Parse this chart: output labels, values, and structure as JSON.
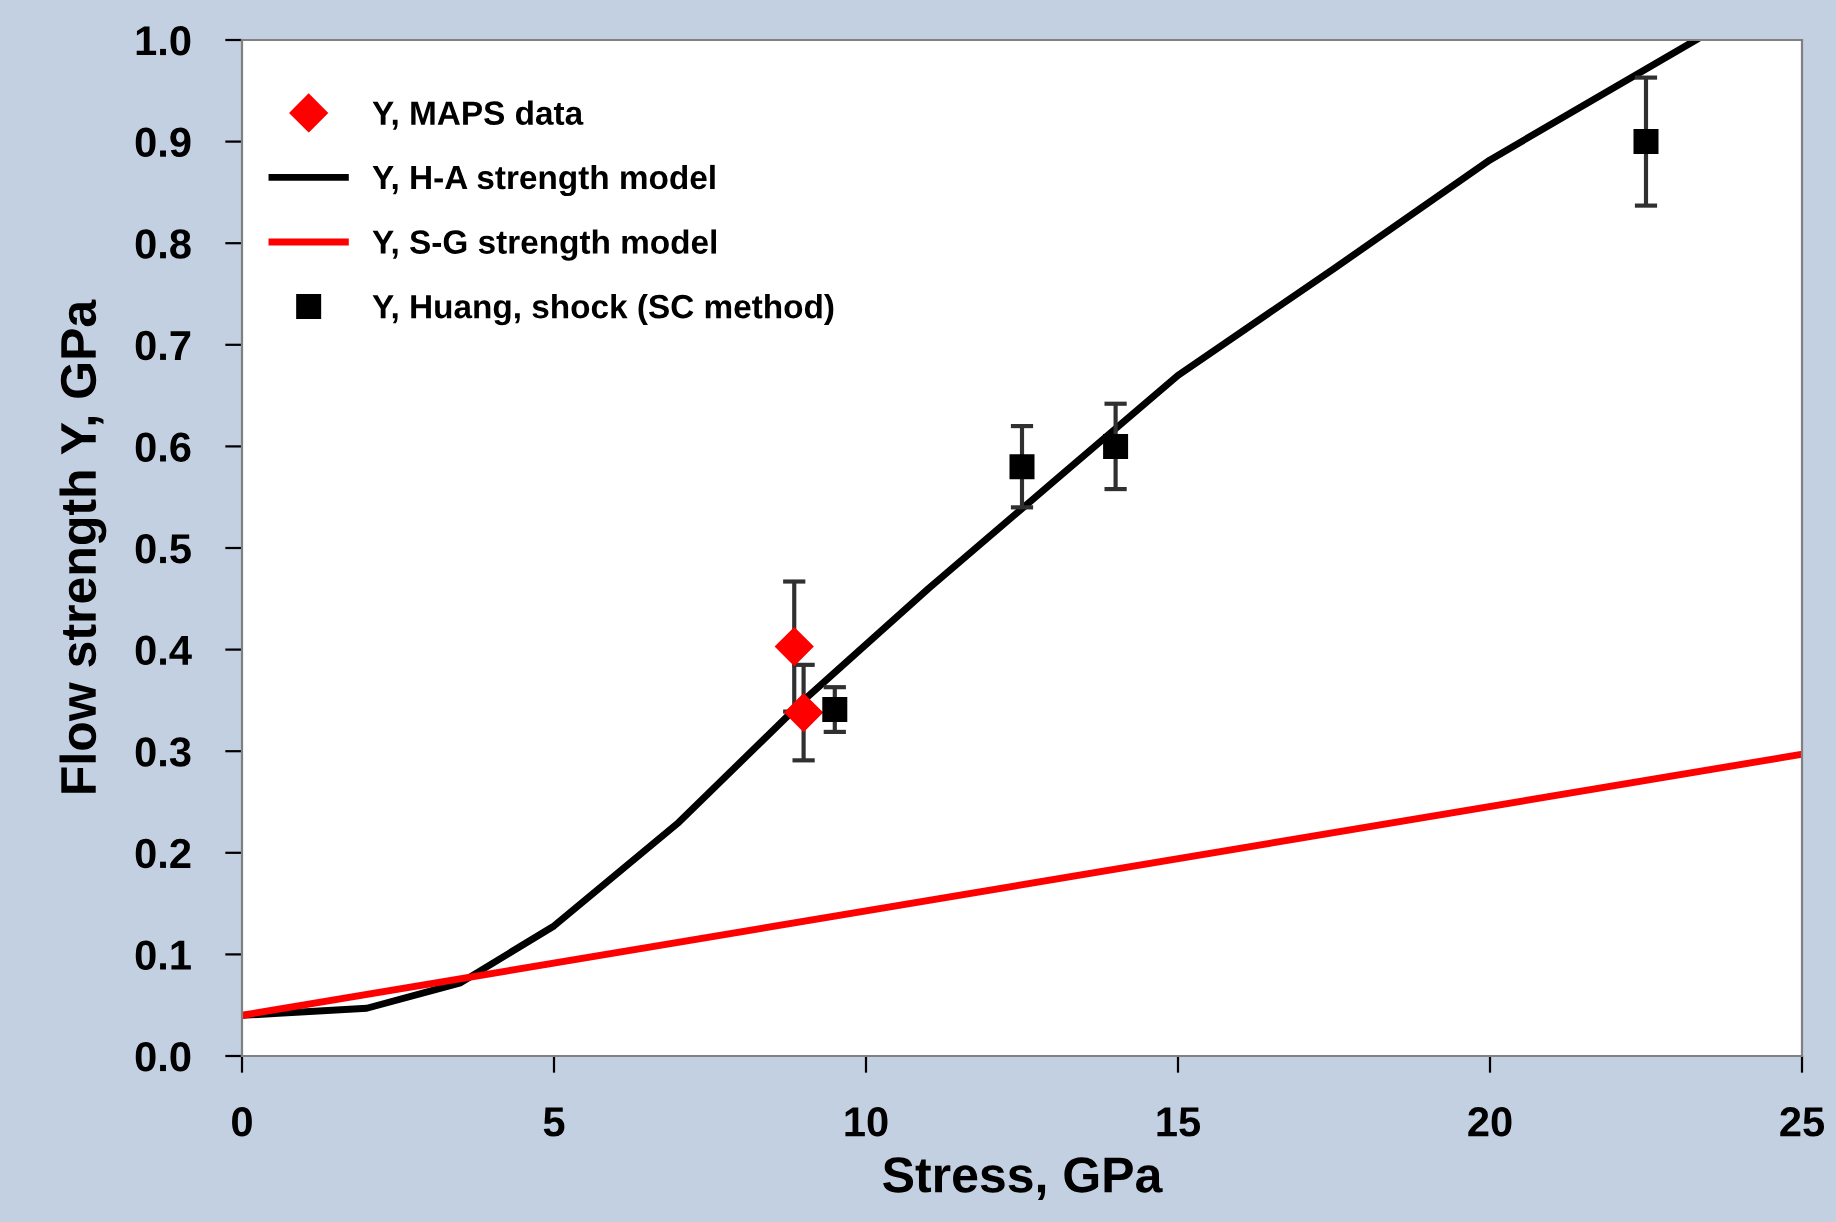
{
  "chart_data": {
    "type": "line",
    "xlabel": "Stress, GPa",
    "ylabel": "Flow strength Y, GPa",
    "xlim": [
      0,
      25
    ],
    "xticks": [
      0,
      5,
      10,
      15,
      20,
      25
    ],
    "ylim": [
      0.0,
      1.0
    ],
    "yticks": [
      {
        "value": 0,
        "label": "0.0"
      },
      0.1,
      0.2,
      0.3,
      0.4,
      0.5,
      0.6,
      0.7,
      0.8,
      0.9,
      {
        "value": 1,
        "label": "1.0"
      }
    ],
    "grid": false,
    "legend": "top left",
    "series": [
      {
        "name": "Y, MAPS data",
        "type": "scatter",
        "marker": "diamond",
        "color": "#ff0000",
        "x": [
          8.85,
          9.0
        ],
        "values": [
          0.403,
          0.338
        ],
        "errors": [
          0.064,
          0.047
        ]
      },
      {
        "name": "Y, H-A strength model",
        "color": "#000000",
        "x": [
          0,
          2,
          3.5,
          5,
          7,
          9,
          11,
          13,
          15,
          17.5,
          20,
          23.3
        ],
        "values": [
          0.04,
          0.047,
          0.072,
          0.128,
          0.23,
          0.35,
          0.46,
          0.565,
          0.67,
          0.775,
          0.882,
          1.0
        ]
      },
      {
        "name": "Y, S-G strength model",
        "color": "#ff0000",
        "x": [
          0,
          25
        ],
        "values": [
          0.04,
          0.297
        ]
      },
      {
        "name": "Y, Huang, shock (SC method)",
        "type": "scatter",
        "marker": "square",
        "color": "#000000",
        "x": [
          9.5,
          12.5,
          14,
          22.5
        ],
        "values": [
          0.341,
          0.58,
          0.6,
          0.9
        ],
        "errors": [
          0.022,
          0.04,
          0.042,
          0.063
        ]
      }
    ]
  }
}
